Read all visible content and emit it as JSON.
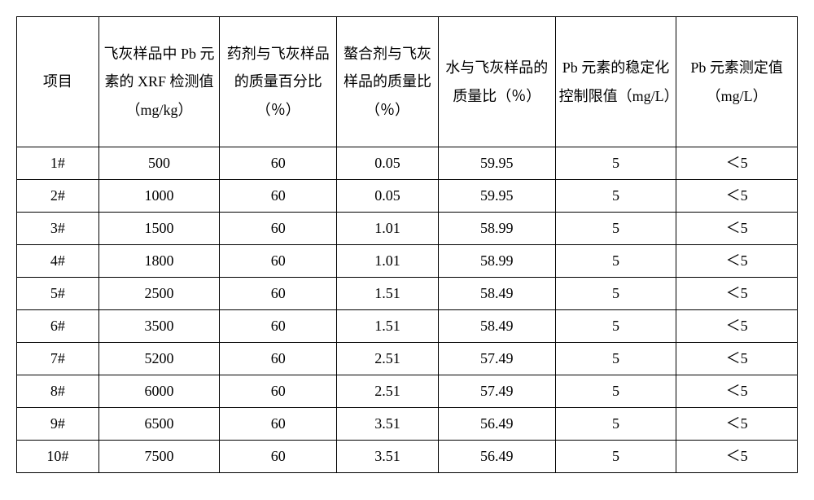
{
  "table": {
    "columns": [
      "项目",
      "飞灰样品中 Pb 元素的 XRF 检测值（mg/kg）",
      "药剂与飞灰样品的质量百分比（％）",
      "螯合剂与飞灰样品的质量比（％）",
      "水与飞灰样品的质量比（％）",
      "Pb 元素的稳定化控制限值（mg/L）",
      "Pb 元素测定值（mg/L）"
    ],
    "rows": [
      [
        "1#",
        "500",
        "60",
        "0.05",
        "59.95",
        "5",
        "＜5"
      ],
      [
        "2#",
        "1000",
        "60",
        "0.05",
        "59.95",
        "5",
        "＜5"
      ],
      [
        "3#",
        "1500",
        "60",
        "1.01",
        "58.99",
        "5",
        "＜5"
      ],
      [
        "4#",
        "1800",
        "60",
        "1.01",
        "58.99",
        "5",
        "＜5"
      ],
      [
        "5#",
        "2500",
        "60",
        "1.51",
        "58.49",
        "5",
        "＜5"
      ],
      [
        "6#",
        "3500",
        "60",
        "1.51",
        "58.49",
        "5",
        "＜5"
      ],
      [
        "7#",
        "5200",
        "60",
        "2.51",
        "57.49",
        "5",
        "＜5"
      ],
      [
        "8#",
        "6000",
        "60",
        "2.51",
        "57.49",
        "5",
        "＜5"
      ],
      [
        "9#",
        "6500",
        "60",
        "3.51",
        "56.49",
        "5",
        "＜5"
      ],
      [
        "10#",
        "7500",
        "60",
        "3.51",
        "56.49",
        "5",
        "＜5"
      ]
    ],
    "colors": {
      "background": "#ffffff",
      "border": "#000000",
      "text": "#000000"
    },
    "fonts": {
      "header_size": 18,
      "cell_size": 18,
      "family": "SimSun"
    }
  }
}
